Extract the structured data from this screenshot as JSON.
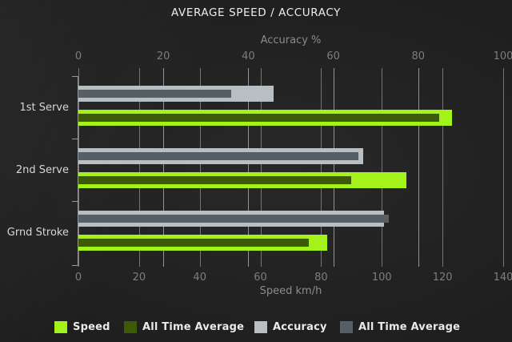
{
  "title": "AVERAGE SPEED / ACCURACY",
  "chart_data": {
    "type": "bar",
    "orientation": "horizontal",
    "title": "AVERAGE SPEED / ACCURACY",
    "categories": [
      "1st Serve",
      "2nd Serve",
      "Grnd Stroke"
    ],
    "series": [
      {
        "name": "Speed",
        "axis": "speed",
        "color": "#a3f219",
        "values": [
          123,
          108,
          82
        ]
      },
      {
        "name": "All Time Average",
        "axis": "speed",
        "color": "#3c5a07",
        "values": [
          119,
          90,
          76
        ]
      },
      {
        "name": "Accuracy",
        "axis": "accuracy",
        "color": "#b8bfc3",
        "values": [
          46,
          67,
          72
        ]
      },
      {
        "name": "All Time Average",
        "axis": "accuracy",
        "color": "#565f66",
        "values": [
          36,
          66,
          73
        ]
      }
    ],
    "axes": {
      "top": {
        "label": "Accuracy %",
        "min": 0,
        "max": 100,
        "ticks": [
          0,
          20,
          40,
          60,
          80,
          100
        ]
      },
      "bottom": {
        "label": "Speed km/h",
        "min": 0,
        "max": 140,
        "ticks": [
          0,
          20,
          40,
          60,
          80,
          100,
          120,
          140
        ]
      }
    },
    "legend": [
      {
        "label": "Speed",
        "color": "#a3f219"
      },
      {
        "label": "All Time Average",
        "color": "#3c5a07"
      },
      {
        "label": "Accuracy",
        "color": "#b8bfc3"
      },
      {
        "label": "All Time Average",
        "color": "#565f66"
      }
    ],
    "grid": true,
    "legend_position": "bottom"
  }
}
